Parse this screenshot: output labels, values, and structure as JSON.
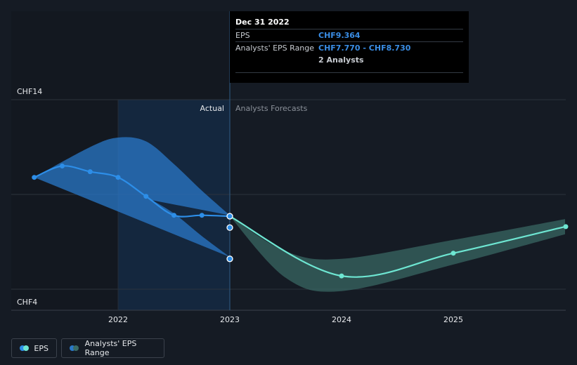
{
  "chart_data": {
    "type": "line",
    "y_axis": {
      "ticks": [
        "CHF14",
        "CHF4"
      ],
      "range": [
        4,
        14
      ],
      "grid": true
    },
    "x_axis": {
      "ticks": [
        "2022",
        "2023",
        "2024",
        "2025"
      ]
    },
    "sections": {
      "actual_label": "Actual",
      "forecast_label": "Analysts Forecasts"
    },
    "series": [
      {
        "name": "EPS",
        "color": "#2d8ee8",
        "points": [
          {
            "x": 2021.25,
            "y": 9.9
          },
          {
            "x": 2021.5,
            "y": 10.5
          },
          {
            "x": 2021.75,
            "y": 10.2
          },
          {
            "x": 2022.0,
            "y": 9.9
          },
          {
            "x": 2022.25,
            "y": 8.9
          },
          {
            "x": 2022.5,
            "y": 7.9
          },
          {
            "x": 2022.75,
            "y": 7.9
          },
          {
            "x": 2023.0,
            "y": 7.85
          }
        ]
      },
      {
        "name": "EPS forecast",
        "color": "#6ee6d2",
        "points": [
          {
            "x": 2023.0,
            "y": 7.85
          },
          {
            "x": 2024.0,
            "y": 4.7
          },
          {
            "x": 2025.0,
            "y": 5.9
          },
          {
            "x": 2026.0,
            "y": 7.3
          }
        ]
      }
    ],
    "actual_range_band": {
      "name": "Analysts' EPS Range",
      "color": "#2a78c8",
      "upper": [
        {
          "x": 2021.25,
          "y": 9.9
        },
        {
          "x": 2021.75,
          "y": 11.5
        },
        {
          "x": 2022.0,
          "y": 12.0
        },
        {
          "x": 2022.25,
          "y": 11.8
        },
        {
          "x": 2022.5,
          "y": 10.6
        },
        {
          "x": 2022.75,
          "y": 9.2
        },
        {
          "x": 2023.0,
          "y": 7.9
        }
      ],
      "lower": [
        {
          "x": 2021.25,
          "y": 9.9
        },
        {
          "x": 2021.5,
          "y": 10.5
        },
        {
          "x": 2021.75,
          "y": 10.3
        },
        {
          "x": 2022.0,
          "y": 9.9
        },
        {
          "x": 2022.25,
          "y": 8.9
        },
        {
          "x": 2022.5,
          "y": 8.0
        },
        {
          "x": 2022.75,
          "y": 6.8
        },
        {
          "x": 2023.0,
          "y": 5.7
        }
      ]
    },
    "forecast_range_band": {
      "color": "#3a6b66",
      "upper": [
        {
          "x": 2023.0,
          "y": 7.85
        },
        {
          "x": 2023.5,
          "y": 6.0
        },
        {
          "x": 2024.0,
          "y": 5.6
        },
        {
          "x": 2025.0,
          "y": 6.6
        },
        {
          "x": 2026.0,
          "y": 7.7
        }
      ],
      "lower": [
        {
          "x": 2026.0,
          "y": 6.9
        },
        {
          "x": 2025.0,
          "y": 5.3
        },
        {
          "x": 2024.0,
          "y": 3.9
        },
        {
          "x": 2023.5,
          "y": 4.6
        },
        {
          "x": 2023.0,
          "y": 7.85
        }
      ]
    },
    "highlight_points": [
      {
        "x": 2023.0,
        "y": 7.85
      },
      {
        "x": 2023.0,
        "y": 7.25
      },
      {
        "x": 2023.0,
        "y": 5.6
      }
    ]
  },
  "tooltip": {
    "date": "Dec 31 2022",
    "eps_label": "EPS",
    "eps_value": "CHF9.364",
    "range_label": "Analysts' EPS Range",
    "range_value": "CHF7.770 - CHF8.730",
    "analysts": "2 Analysts"
  },
  "legend": {
    "eps_label": "EPS",
    "range_label": "Analysts' EPS Range",
    "eps_colors": [
      "#2d8ee8",
      "#6ee6d2"
    ],
    "range_colors": [
      "#2a78c8",
      "#3a6b66"
    ]
  }
}
